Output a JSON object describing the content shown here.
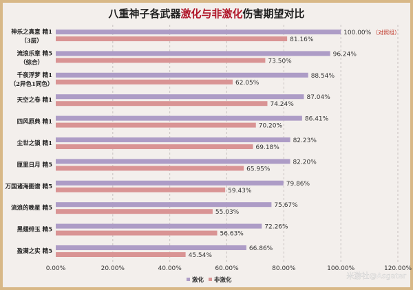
{
  "chart_data": {
    "type": "bar",
    "orientation": "horizontal",
    "title_parts": [
      {
        "text": "八重神子各武器",
        "color": "#222222"
      },
      {
        "text": "激化与非激化",
        "color": "#b0172a"
      },
      {
        "text": "伤害期望对比",
        "color": "#222222"
      }
    ],
    "categories": [
      [
        "神乐之真意 精1",
        "（3层）"
      ],
      [
        "流浪乐章 精5",
        "（综合）"
      ],
      [
        "千夜浮梦 精1",
        "（2异色1同色）"
      ],
      [
        "天空之卷 精1"
      ],
      [
        "四风原典 精1"
      ],
      [
        "尘世之锁 精1"
      ],
      [
        "匣里日月 精5"
      ],
      [
        "万国诸海图谱 精5"
      ],
      [
        "流浪的晚星 精5"
      ],
      [
        "黑翅绯玉 精5"
      ],
      [
        "盈满之实 精5"
      ]
    ],
    "series": [
      {
        "name": "激化",
        "color": "#ad9cc6",
        "values": [
          100.0,
          96.24,
          88.54,
          87.04,
          86.41,
          82.23,
          82.2,
          79.86,
          75.67,
          72.26,
          66.86
        ]
      },
      {
        "name": "非激化",
        "color": "#d99494",
        "values": [
          81.16,
          73.5,
          62.05,
          74.24,
          70.2,
          69.18,
          65.95,
          59.43,
          55.03,
          56.63,
          45.54
        ]
      }
    ],
    "annotation": {
      "text": "（对照组）",
      "color": "#c0392b"
    },
    "xlim": [
      0,
      120
    ],
    "xticks": [
      "0.00%",
      "20.00%",
      "40.00%",
      "60.00%",
      "80.00%",
      "100.00%",
      "120.00%"
    ],
    "grid": "vertical dashed",
    "legend": "bottom-center"
  },
  "watermark": "米游社@Asgater"
}
